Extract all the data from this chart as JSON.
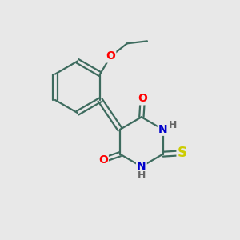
{
  "bg_color": "#e8e8e8",
  "bond_color": "#3d6b5e",
  "bond_width": 1.6,
  "atom_colors": {
    "O": "#ff0000",
    "N": "#0000cc",
    "S": "#cccc00",
    "H": "#666666"
  },
  "font_size_atoms": 10,
  "font_size_h": 9,
  "font_size_s": 12
}
